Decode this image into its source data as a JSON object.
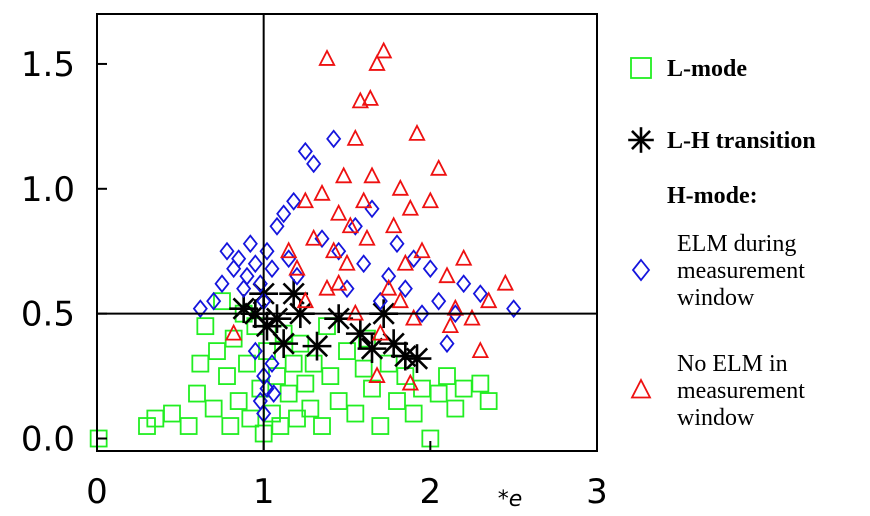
{
  "chart_data": {
    "type": "scatter",
    "title": "",
    "xlabel": "*e",
    "ylabel": "",
    "xlim": [
      0,
      3
    ],
    "ylim": [
      -0.05,
      1.7
    ],
    "xticks": [
      {
        "v": 0,
        "label": "0"
      },
      {
        "v": 1,
        "label": "1"
      },
      {
        "v": 2,
        "label": "2"
      },
      {
        "v": 3,
        "label": "3"
      }
    ],
    "yticks": [
      {
        "v": 0,
        "label": "0.0"
      },
      {
        "v": 0.5,
        "label": "0.5"
      },
      {
        "v": 1.0,
        "label": "1.0"
      },
      {
        "v": 1.5,
        "label": "1.5"
      }
    ],
    "reference_lines": {
      "x": 1,
      "y": 0.5
    },
    "series": [
      {
        "name": "L-mode",
        "marker": "square",
        "color": "#22ee22",
        "points": [
          [
            0.01,
            0.0
          ],
          [
            0.3,
            0.05
          ],
          [
            0.35,
            0.08
          ],
          [
            0.45,
            0.1
          ],
          [
            0.55,
            0.05
          ],
          [
            0.6,
            0.18
          ],
          [
            0.62,
            0.3
          ],
          [
            0.65,
            0.45
          ],
          [
            0.7,
            0.12
          ],
          [
            0.72,
            0.35
          ],
          [
            0.75,
            0.55
          ],
          [
            0.78,
            0.25
          ],
          [
            0.8,
            0.05
          ],
          [
            0.82,
            0.4
          ],
          [
            0.85,
            0.15
          ],
          [
            0.88,
            0.5
          ],
          [
            0.9,
            0.3
          ],
          [
            0.92,
            0.08
          ],
          [
            0.95,
            0.45
          ],
          [
            0.98,
            0.2
          ],
          [
            1.0,
            0.02
          ],
          [
            1.02,
            0.35
          ],
          [
            1.05,
            0.1
          ],
          [
            1.08,
            0.25
          ],
          [
            1.1,
            0.05
          ],
          [
            1.12,
            0.42
          ],
          [
            1.15,
            0.18
          ],
          [
            1.18,
            0.3
          ],
          [
            1.2,
            0.08
          ],
          [
            1.22,
            0.38
          ],
          [
            1.25,
            0.22
          ],
          [
            1.28,
            0.12
          ],
          [
            1.3,
            0.3
          ],
          [
            1.35,
            0.05
          ],
          [
            1.4,
            0.25
          ],
          [
            1.45,
            0.15
          ],
          [
            1.5,
            0.35
          ],
          [
            1.55,
            0.1
          ],
          [
            1.6,
            0.28
          ],
          [
            1.65,
            0.2
          ],
          [
            1.7,
            0.05
          ],
          [
            1.75,
            0.3
          ],
          [
            1.8,
            0.15
          ],
          [
            1.85,
            0.25
          ],
          [
            1.9,
            0.1
          ],
          [
            1.95,
            0.2
          ],
          [
            2.0,
            0.0
          ],
          [
            2.05,
            0.18
          ],
          [
            2.1,
            0.25
          ],
          [
            2.15,
            0.12
          ],
          [
            2.2,
            0.2
          ],
          [
            2.3,
            0.22
          ],
          [
            2.35,
            0.15
          ],
          [
            1.38,
            0.45
          ],
          [
            1.62,
            0.4
          ]
        ]
      },
      {
        "name": "L-H transition",
        "marker": "asterisk",
        "color": "#000000",
        "points": [
          [
            0.88,
            0.52
          ],
          [
            0.95,
            0.5
          ],
          [
            1.0,
            0.58
          ],
          [
            1.02,
            0.45
          ],
          [
            1.08,
            0.48
          ],
          [
            1.12,
            0.38
          ],
          [
            1.18,
            0.58
          ],
          [
            1.22,
            0.5
          ],
          [
            1.32,
            0.37
          ],
          [
            1.45,
            0.48
          ],
          [
            1.58,
            0.42
          ],
          [
            1.65,
            0.36
          ],
          [
            1.72,
            0.5
          ],
          [
            1.78,
            0.38
          ],
          [
            1.85,
            0.33
          ],
          [
            1.92,
            0.32
          ]
        ]
      },
      {
        "name": "ELM during measurement window",
        "marker": "diamond",
        "color": "#1515dd",
        "points": [
          [
            0.62,
            0.52
          ],
          [
            0.7,
            0.55
          ],
          [
            0.75,
            0.62
          ],
          [
            0.78,
            0.75
          ],
          [
            0.82,
            0.68
          ],
          [
            0.85,
            0.72
          ],
          [
            0.88,
            0.6
          ],
          [
            0.9,
            0.65
          ],
          [
            0.92,
            0.78
          ],
          [
            0.95,
            0.7
          ],
          [
            0.98,
            0.62
          ],
          [
            1.0,
            0.55
          ],
          [
            1.02,
            0.75
          ],
          [
            1.05,
            0.68
          ],
          [
            1.08,
            0.85
          ],
          [
            1.12,
            0.9
          ],
          [
            1.15,
            0.72
          ],
          [
            1.18,
            0.95
          ],
          [
            1.2,
            0.65
          ],
          [
            1.25,
            1.15
          ],
          [
            1.3,
            1.1
          ],
          [
            1.35,
            0.8
          ],
          [
            1.42,
            1.2
          ],
          [
            1.45,
            0.75
          ],
          [
            1.5,
            0.6
          ],
          [
            1.55,
            0.85
          ],
          [
            1.6,
            0.7
          ],
          [
            1.65,
            0.92
          ],
          [
            1.7,
            0.55
          ],
          [
            1.75,
            0.65
          ],
          [
            1.8,
            0.78
          ],
          [
            1.85,
            0.6
          ],
          [
            1.9,
            0.72
          ],
          [
            1.95,
            0.5
          ],
          [
            2.0,
            0.68
          ],
          [
            2.05,
            0.55
          ],
          [
            2.1,
            0.38
          ],
          [
            2.15,
            0.5
          ],
          [
            2.2,
            0.62
          ],
          [
            2.3,
            0.58
          ],
          [
            2.5,
            0.52
          ],
          [
            0.95,
            0.35
          ],
          [
            1.0,
            0.25
          ],
          [
            0.98,
            0.15
          ],
          [
            1.05,
            0.3
          ],
          [
            1.02,
            0.2
          ],
          [
            1.0,
            0.1
          ],
          [
            1.06,
            0.18
          ]
        ]
      },
      {
        "name": "No ELM in measurement window",
        "marker": "triangle",
        "color": "#ee1111",
        "points": [
          [
            0.82,
            0.42
          ],
          [
            1.2,
            0.68
          ],
          [
            1.25,
            0.55
          ],
          [
            1.3,
            0.8
          ],
          [
            1.35,
            0.98
          ],
          [
            1.38,
            0.6
          ],
          [
            1.42,
            0.75
          ],
          [
            1.45,
            0.9
          ],
          [
            1.48,
            1.05
          ],
          [
            1.5,
            0.7
          ],
          [
            1.52,
            0.85
          ],
          [
            1.55,
            1.2
          ],
          [
            1.58,
            1.35
          ],
          [
            1.6,
            0.95
          ],
          [
            1.62,
            0.8
          ],
          [
            1.65,
            1.05
          ],
          [
            1.68,
            1.5
          ],
          [
            1.72,
            1.55
          ],
          [
            1.75,
            0.6
          ],
          [
            1.78,
            0.85
          ],
          [
            1.82,
            1.0
          ],
          [
            1.85,
            0.7
          ],
          [
            1.88,
            0.92
          ],
          [
            1.92,
            1.22
          ],
          [
            1.95,
            0.75
          ],
          [
            2.0,
            0.95
          ],
          [
            2.05,
            1.08
          ],
          [
            2.1,
            0.65
          ],
          [
            2.15,
            0.52
          ],
          [
            2.2,
            0.72
          ],
          [
            2.25,
            0.48
          ],
          [
            2.35,
            0.55
          ],
          [
            2.45,
            0.62
          ],
          [
            1.38,
            1.52
          ],
          [
            1.64,
            1.36
          ],
          [
            1.7,
            0.42
          ],
          [
            1.55,
            0.5
          ],
          [
            1.45,
            0.62
          ],
          [
            1.82,
            0.55
          ],
          [
            2.12,
            0.45
          ],
          [
            1.68,
            0.25
          ],
          [
            1.88,
            0.22
          ],
          [
            2.3,
            0.35
          ],
          [
            1.15,
            0.75
          ],
          [
            1.25,
            0.95
          ],
          [
            1.9,
            0.48
          ]
        ]
      }
    ],
    "legend": {
      "placement": "right",
      "items": [
        {
          "marker": "square",
          "color": "#22ee22",
          "lines": [
            "L-mode"
          ],
          "bold": true
        },
        {
          "marker": "asterisk",
          "color": "#000000",
          "lines": [
            "L-H transition"
          ],
          "bold": true
        },
        {
          "marker": "none",
          "color": "",
          "lines": [
            "H-mode:"
          ],
          "bold": true
        },
        {
          "marker": "diamond",
          "color": "#1515dd",
          "lines": [
            "ELM  during",
            "measurement",
            "window"
          ],
          "bold": false
        },
        {
          "marker": "triangle",
          "color": "#ee1111",
          "lines": [
            "No ELM in",
            "measurement",
            "window"
          ],
          "bold": false
        }
      ]
    }
  }
}
